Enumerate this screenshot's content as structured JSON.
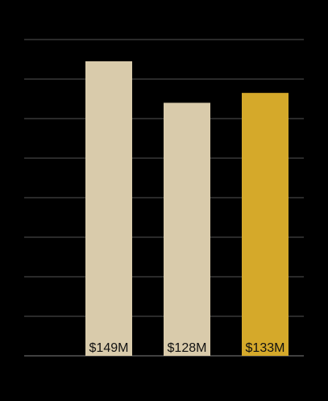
{
  "chart_data": {
    "type": "bar",
    "title": "",
    "xlabel": "",
    "ylabel": "",
    "categories": [
      "",
      "",
      ""
    ],
    "values": [
      149,
      128,
      133
    ],
    "value_labels": [
      "$149M",
      "$128M",
      "$133M"
    ],
    "unit": "$M",
    "ylim": [
      0,
      160
    ],
    "grid": true,
    "colors": {
      "background": "#000000",
      "bar": "#d9cbab",
      "highlight": "#d5a92a",
      "grid": "#555555",
      "label": "#111111"
    },
    "highlight_index": 2
  }
}
